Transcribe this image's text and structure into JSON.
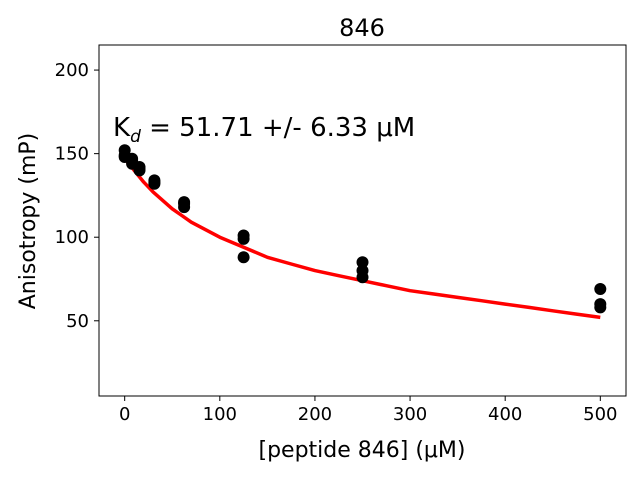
{
  "chart_data": {
    "type": "scatter",
    "title": "846",
    "xlabel": "[peptide 846] (μM)",
    "ylabel": "Anisotropy (mP)",
    "xlim": [
      -27,
      527
    ],
    "ylim": [
      5,
      215
    ],
    "x_ticks": [
      0,
      100,
      200,
      300,
      400,
      500
    ],
    "y_ticks": [
      50,
      100,
      150,
      200
    ],
    "grid": false,
    "annotation": {
      "prefix": "K",
      "subscript": "d",
      "text": " = 51.71 +/- 6.33 μM"
    },
    "series": [
      {
        "kind": "points",
        "color": "#000000",
        "points": [
          [
            0,
            152
          ],
          [
            0,
            149
          ],
          [
            0,
            148
          ],
          [
            7.8,
            147
          ],
          [
            7.8,
            146
          ],
          [
            7.8,
            144
          ],
          [
            15.6,
            142
          ],
          [
            15.6,
            141
          ],
          [
            15.6,
            140
          ],
          [
            31.25,
            134
          ],
          [
            31.25,
            133
          ],
          [
            31.25,
            132
          ],
          [
            62.5,
            121
          ],
          [
            62.5,
            120
          ],
          [
            62.5,
            118
          ],
          [
            125,
            101
          ],
          [
            125,
            99
          ],
          [
            125,
            88
          ],
          [
            250,
            85
          ],
          [
            250,
            80
          ],
          [
            250,
            76
          ],
          [
            500,
            69
          ],
          [
            500,
            60
          ],
          [
            500,
            58
          ]
        ]
      },
      {
        "kind": "fit",
        "color": "#ff0000",
        "x": [
          0,
          10,
          20,
          30,
          40,
          50,
          60,
          70,
          80,
          90,
          100,
          125,
          150,
          175,
          200,
          225,
          250,
          275,
          300,
          325,
          350,
          375,
          400,
          425,
          450,
          475,
          500
        ],
        "y": [
          147,
          140,
          133,
          127,
          122,
          117,
          113,
          109,
          106,
          103,
          100,
          94,
          88,
          84,
          80,
          77,
          74,
          71,
          68,
          66,
          64,
          62,
          60,
          58,
          56,
          54,
          52
        ]
      }
    ]
  }
}
